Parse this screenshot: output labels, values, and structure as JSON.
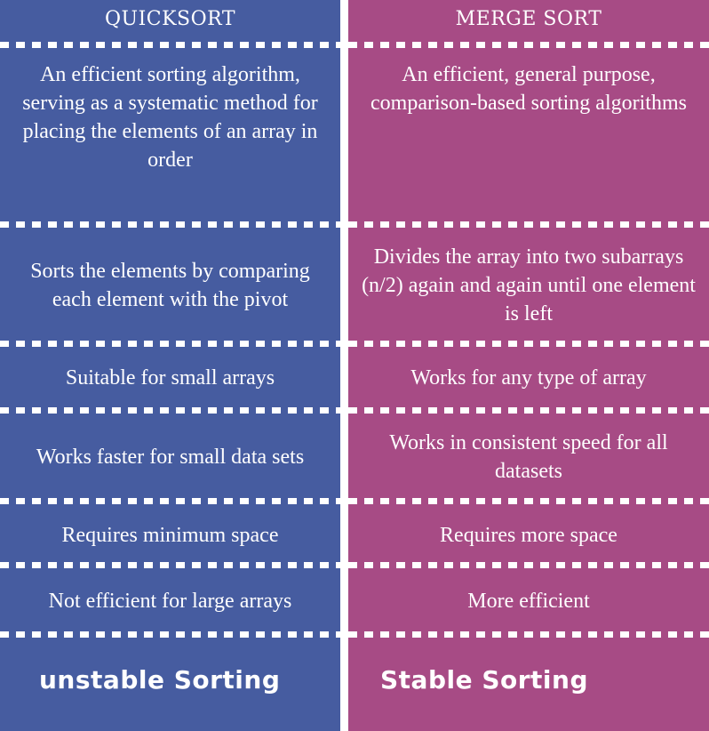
{
  "left": {
    "header": "QUICKSORT",
    "rows": [
      "An efficient sorting algorithm, serving as a systematic method for placing the elements of an array in order",
      "Sorts the elements by comparing each element with the pivot",
      "Suitable for small arrays",
      "Works faster for small data sets",
      "Requires minimum space",
      "Not efficient for large arrays",
      "unstable Sorting"
    ]
  },
  "right": {
    "header": "MERGE SORT",
    "rows": [
      "An efficient, general purpose, comparison-based sorting algorithms",
      "Divides the array into two subarrays (n/2) again and again until one element is left",
      "Works for any type of array",
      "Works in consistent speed for all datasets",
      "Requires more space",
      "More efficient",
      "Stable Sorting"
    ]
  },
  "colors": {
    "left_bg": "#465ca0",
    "right_bg": "#a74b85",
    "text": "#ffffff"
  }
}
